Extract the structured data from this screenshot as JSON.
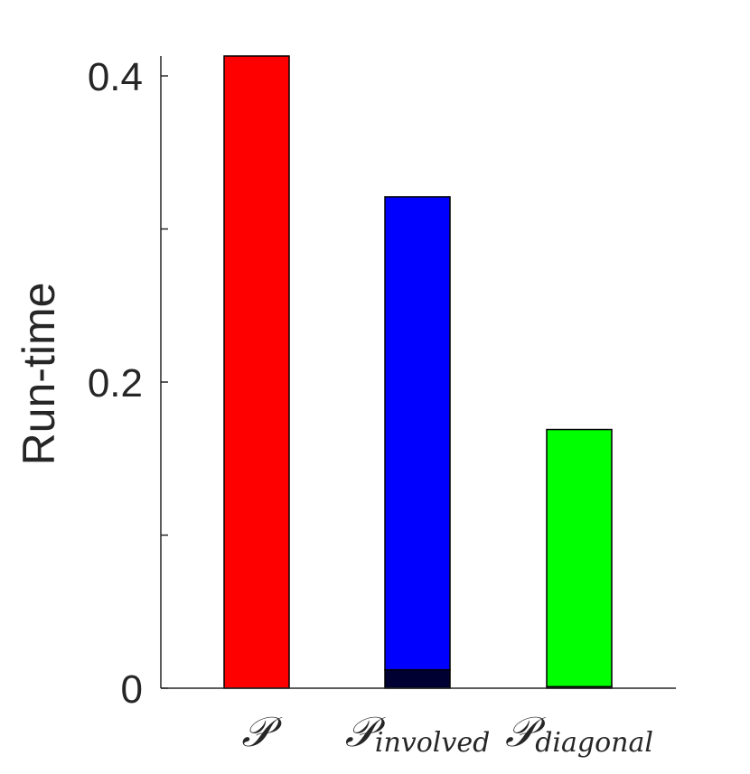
{
  "chart_data": {
    "type": "bar",
    "title": "",
    "xlabel": "",
    "ylabel": "Run-time",
    "ylim": [
      0,
      0.413
    ],
    "yticks": [
      0,
      0.1,
      0.2,
      0.3,
      0.4
    ],
    "ytick_labels": [
      "0",
      "",
      "0.2",
      "",
      "0.4"
    ],
    "grid": false,
    "categories": [
      {
        "main": "𝒫",
        "sub": ""
      },
      {
        "main": "𝒫",
        "sub": "involved"
      },
      {
        "main": "𝒫",
        "sub": "diagonal"
      }
    ],
    "series": [
      {
        "values": [
          0.0,
          0.012,
          0.001
        ],
        "color": "#000033"
      },
      {
        "values": [
          0.413,
          0.309,
          0.168
        ],
        "colors": [
          "#ff0000",
          "#0000ff",
          "#00ff00"
        ]
      }
    ]
  }
}
